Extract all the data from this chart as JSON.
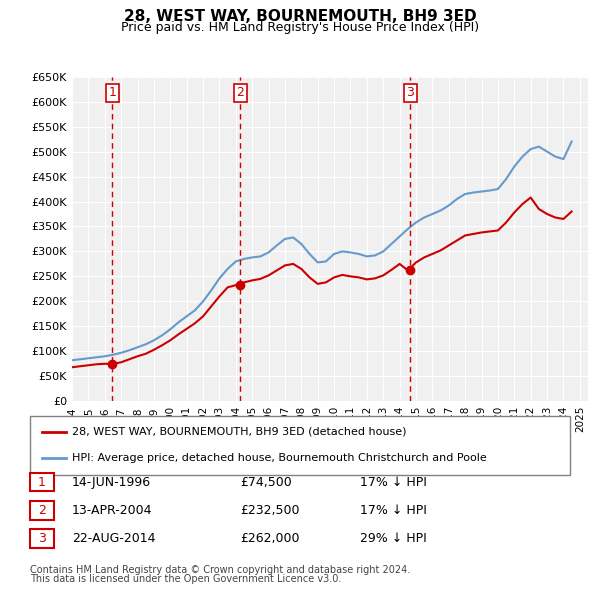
{
  "title": "28, WEST WAY, BOURNEMOUTH, BH9 3ED",
  "subtitle": "Price paid vs. HM Land Registry's House Price Index (HPI)",
  "legend_line1": "28, WEST WAY, BOURNEMOUTH, BH9 3ED (detached house)",
  "legend_line2": "HPI: Average price, detached house, Bournemouth Christchurch and Poole",
  "footer1": "Contains HM Land Registry data © Crown copyright and database right 2024.",
  "footer2": "This data is licensed under the Open Government Licence v3.0.",
  "transactions": [
    {
      "num": 1,
      "date": "14-JUN-1996",
      "price": 74500,
      "pct": "17%",
      "year": 1996.45
    },
    {
      "num": 2,
      "date": "13-APR-2004",
      "price": 232500,
      "pct": "17%",
      "year": 2004.28
    },
    {
      "num": 3,
      "date": "22-AUG-2014",
      "price": 262000,
      "pct": "29%",
      "year": 2014.64
    }
  ],
  "hpi_x": [
    1994,
    1994.5,
    1995,
    1995.5,
    1996,
    1996.5,
    1997,
    1997.5,
    1998,
    1998.5,
    1999,
    1999.5,
    2000,
    2000.5,
    2001,
    2001.5,
    2002,
    2002.5,
    2003,
    2003.5,
    2004,
    2004.5,
    2005,
    2005.5,
    2006,
    2006.5,
    2007,
    2007.5,
    2008,
    2008.5,
    2009,
    2009.5,
    2010,
    2010.5,
    2011,
    2011.5,
    2012,
    2012.5,
    2013,
    2013.5,
    2014,
    2014.5,
    2015,
    2015.5,
    2016,
    2016.5,
    2017,
    2017.5,
    2018,
    2018.5,
    2019,
    2019.5,
    2020,
    2020.5,
    2021,
    2021.5,
    2022,
    2022.5,
    2023,
    2023.5,
    2024,
    2024.5
  ],
  "hpi_y": [
    82000,
    84000,
    86000,
    88000,
    90000,
    93000,
    97000,
    102000,
    108000,
    114000,
    122000,
    132000,
    144000,
    158000,
    170000,
    182000,
    200000,
    222000,
    246000,
    265000,
    280000,
    285000,
    288000,
    290000,
    298000,
    312000,
    325000,
    328000,
    315000,
    295000,
    278000,
    280000,
    295000,
    300000,
    298000,
    295000,
    290000,
    292000,
    300000,
    315000,
    330000,
    345000,
    358000,
    368000,
    375000,
    382000,
    392000,
    405000,
    415000,
    418000,
    420000,
    422000,
    425000,
    445000,
    470000,
    490000,
    505000,
    510000,
    500000,
    490000,
    485000,
    520000
  ],
  "price_x": [
    1994,
    1994.5,
    1995,
    1995.5,
    1996,
    1996.5,
    1997,
    1997.5,
    1998,
    1998.5,
    1999,
    1999.5,
    2000,
    2000.5,
    2001,
    2001.5,
    2002,
    2002.5,
    2003,
    2003.5,
    2004,
    2004.5,
    2005,
    2005.5,
    2006,
    2006.5,
    2007,
    2007.5,
    2008,
    2008.5,
    2009,
    2009.5,
    2010,
    2010.5,
    2011,
    2011.5,
    2012,
    2012.5,
    2013,
    2013.5,
    2014,
    2014.5,
    2015,
    2015.5,
    2016,
    2016.5,
    2017,
    2017.5,
    2018,
    2018.5,
    2019,
    2019.5,
    2020,
    2020.5,
    2021,
    2021.5,
    2022,
    2022.5,
    2023,
    2023.5,
    2024,
    2024.5
  ],
  "price_y": [
    68000,
    70000,
    72000,
    74000,
    75000,
    74500,
    78000,
    84000,
    90000,
    95000,
    103000,
    112000,
    122000,
    134000,
    145000,
    156000,
    170000,
    190000,
    210000,
    228000,
    232500,
    238000,
    242000,
    245000,
    252000,
    262000,
    272000,
    275000,
    265000,
    248000,
    235000,
    238000,
    248000,
    253000,
    250000,
    248000,
    244000,
    246000,
    252000,
    263000,
    275000,
    262000,
    278000,
    288000,
    295000,
    302000,
    312000,
    322000,
    332000,
    335000,
    338000,
    340000,
    342000,
    358000,
    378000,
    395000,
    408000,
    385000,
    375000,
    368000,
    365000,
    380000
  ],
  "xlim": [
    1994,
    2025.5
  ],
  "ylim": [
    0,
    650000
  ],
  "yticks": [
    0,
    50000,
    100000,
    150000,
    200000,
    250000,
    300000,
    350000,
    400000,
    450000,
    500000,
    550000,
    600000,
    650000
  ],
  "xticks": [
    1994,
    1995,
    1996,
    1997,
    1998,
    1999,
    2000,
    2001,
    2002,
    2003,
    2004,
    2005,
    2006,
    2007,
    2008,
    2009,
    2010,
    2011,
    2012,
    2013,
    2014,
    2015,
    2016,
    2017,
    2018,
    2019,
    2020,
    2021,
    2022,
    2023,
    2024,
    2025
  ],
  "hpi_color": "#6699cc",
  "price_color": "#cc0000",
  "bg_color": "#ffffff",
  "plot_bg": "#f0f0f0",
  "grid_color": "#ffffff"
}
